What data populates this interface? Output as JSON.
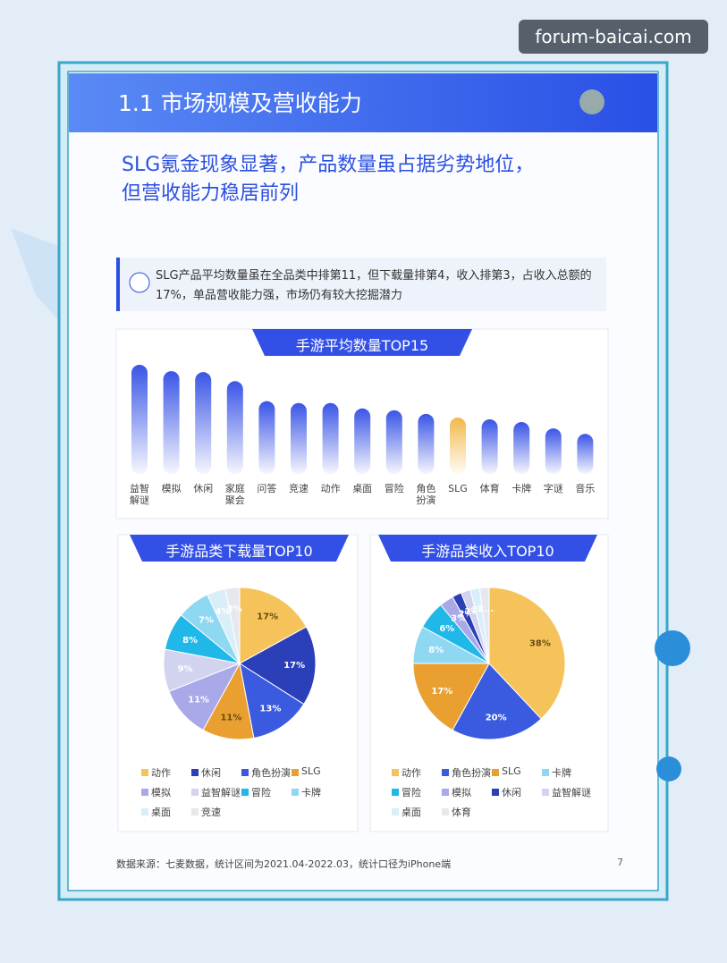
{
  "watermark": "forum-baicai.com",
  "header": {
    "title": "1.1 市场规模及营收能力",
    "subtitle": [
      "SLG氪金现象显著，产品数量虽占据劣势地位，",
      "但营收能力稳居前列"
    ]
  },
  "callout": "SLG产品平均数量虽在全品类中排第11，但下载量排第4，收入排第3，占收入总额的17%，单品营收能力强，市场仍有较大挖掘潜力",
  "chart_data": [
    {
      "type": "bar",
      "title": "手游平均数量TOP15",
      "categories": [
        "益智解谜",
        "模拟",
        "休闲",
        "家庭聚会",
        "问答",
        "竞速",
        "动作",
        "桌面",
        "冒险",
        "角色扮演",
        "SLG",
        "体育",
        "卡牌",
        "字谜",
        "音乐"
      ],
      "values": [
        120,
        113,
        112,
        102,
        80,
        78,
        78,
        72,
        70,
        66,
        62,
        60,
        57,
        50,
        44
      ],
      "colors": [
        "#3a55e6",
        "#3a55e6",
        "#3a55e6",
        "#3a55e6",
        "#3a55e6",
        "#3a55e6",
        "#3a55e6",
        "#3a55e6",
        "#3a55e6",
        "#3a55e6",
        "#f2b94a",
        "#3a55e6",
        "#3a55e6",
        "#3a55e6",
        "#3a55e6"
      ]
    },
    {
      "type": "pie",
      "title": "手游品类下载量TOP10",
      "categories": [
        "动作",
        "休闲",
        "角色扮演",
        "SLG",
        "模拟",
        "益智解谜",
        "冒险",
        "卡牌",
        "桌面",
        "竞速"
      ],
      "values": [
        17,
        17,
        13,
        11,
        11,
        9,
        8,
        7,
        4,
        3
      ],
      "value_labels": [
        "17%",
        "17%",
        "13%",
        "11%",
        "11%",
        "9%",
        "8%",
        "7%",
        "4%",
        "3%"
      ],
      "colors": [
        "#f5c35a",
        "#2a3fb8",
        "#3a5be0",
        "#e9a030",
        "#a9a8e8",
        "#d2d3ef",
        "#1fb8e8",
        "#8fd8f2",
        "#d8eef8",
        "#e6e8ee"
      ]
    },
    {
      "type": "pie",
      "title": "手游品类收入TOP10",
      "categories": [
        "动作",
        "角色扮演",
        "SLG",
        "卡牌",
        "冒险",
        "模拟",
        "休闲",
        "益智解谜",
        "桌面",
        "体育"
      ],
      "values": [
        38,
        20,
        17,
        8,
        6,
        3,
        2,
        2,
        2,
        2
      ],
      "value_labels": [
        "38%",
        "20%",
        "17%",
        "8%",
        "6%",
        "3%",
        "2%",
        "2%",
        "2%",
        "2..."
      ],
      "colors": [
        "#f5c35a",
        "#3a5be0",
        "#e9a030",
        "#8fd8f2",
        "#1fb8e8",
        "#a9a8e8",
        "#2a3fb8",
        "#d2d3ef",
        "#d8eef8",
        "#e6e8ee"
      ]
    }
  ],
  "footer": {
    "source": "数据来源：七麦数据，统计区间为2021.04-2022.03，统计口径为iPhone端",
    "page": "7"
  }
}
